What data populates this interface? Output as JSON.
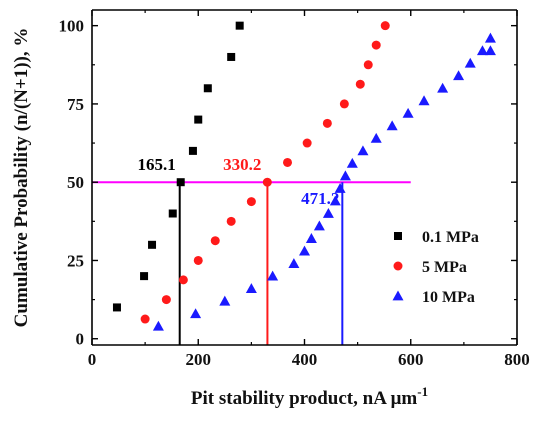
{
  "chart_data": {
    "type": "scatter",
    "xlabel": "Pit stability product, nA μm",
    "xlabel_superscript": "-1",
    "ylabel": "Cumulative Probability (n/(N+1)), %",
    "xlim": [
      0,
      800
    ],
    "ylim": [
      -2,
      105
    ],
    "x_ticks": [
      0,
      200,
      400,
      600,
      800
    ],
    "y_ticks": [
      0,
      25,
      50,
      75,
      100
    ],
    "x_tick_labels": [
      "0",
      "200",
      "400",
      "600",
      "800"
    ],
    "y_tick_labels": [
      "0",
      "25",
      "50",
      "75",
      "100"
    ],
    "grid": false,
    "legend_position": "right",
    "series": [
      {
        "name": "0.1 MPa",
        "marker": "square",
        "color": "#000000",
        "points": [
          [
            47,
            10
          ],
          [
            98,
            20
          ],
          [
            113,
            30
          ],
          [
            152,
            40
          ],
          [
            167,
            50
          ],
          [
            190,
            60
          ],
          [
            200,
            70
          ],
          [
            218,
            80
          ],
          [
            262,
            90
          ],
          [
            278,
            100
          ]
        ]
      },
      {
        "name": "5 MPa",
        "marker": "circle",
        "color": "#ff1a1a",
        "points": [
          [
            100,
            6.3
          ],
          [
            140,
            12.5
          ],
          [
            172,
            18.8
          ],
          [
            200,
            25
          ],
          [
            232,
            31.3
          ],
          [
            262,
            37.5
          ],
          [
            300,
            43.8
          ],
          [
            330,
            50
          ],
          [
            368,
            56.3
          ],
          [
            405,
            62.5
          ],
          [
            443,
            68.8
          ],
          [
            475,
            75
          ],
          [
            505,
            81.3
          ],
          [
            520,
            87.5
          ],
          [
            535,
            93.8
          ],
          [
            552,
            100
          ]
        ]
      },
      {
        "name": "10 MPa",
        "marker": "triangle",
        "color": "#1a1aff",
        "points": [
          [
            125,
            4
          ],
          [
            195,
            8
          ],
          [
            250,
            12
          ],
          [
            300,
            16
          ],
          [
            340,
            20
          ],
          [
            380,
            24
          ],
          [
            400,
            28
          ],
          [
            413,
            32
          ],
          [
            428,
            36
          ],
          [
            445,
            40
          ],
          [
            458,
            44
          ],
          [
            467,
            48
          ],
          [
            477,
            52
          ],
          [
            490,
            56
          ],
          [
            510,
            60
          ],
          [
            535,
            64
          ],
          [
            565,
            68
          ],
          [
            595,
            72
          ],
          [
            625,
            76
          ],
          [
            660,
            80
          ],
          [
            690,
            84
          ],
          [
            712,
            88
          ],
          [
            735,
            92
          ],
          [
            750,
            96
          ],
          [
            750,
            92
          ]
        ]
      }
    ],
    "reference_line": {
      "y": 50,
      "x_start": 0,
      "x_end": 600,
      "color": "#ff00ff"
    },
    "annotations": [
      {
        "label": "165.1",
        "x": 165.1,
        "color": "#000000"
      },
      {
        "label": "330.2",
        "x": 330.2,
        "color": "#ff1a1a"
      },
      {
        "label": "471.2",
        "x": 471.2,
        "color": "#1a1aff"
      }
    ]
  }
}
